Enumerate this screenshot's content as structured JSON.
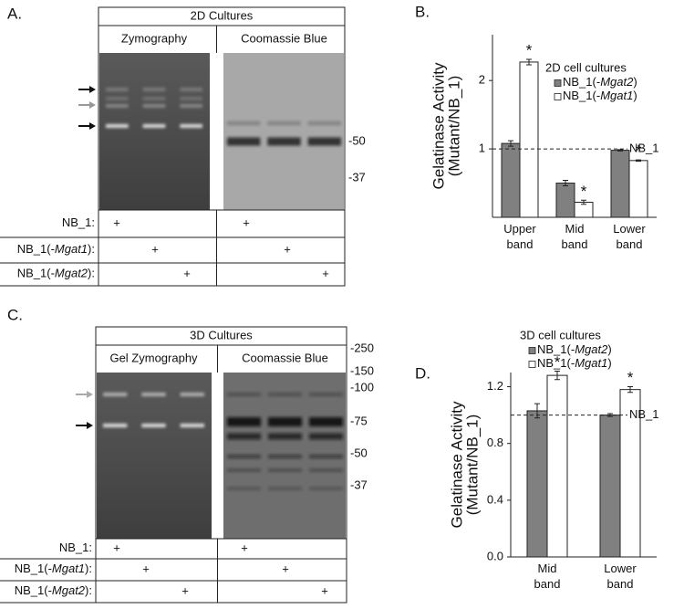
{
  "gel_a": {
    "label": "A.",
    "header": "2D Cultures",
    "columns": [
      "Zymography",
      "Coomassie Blue"
    ],
    "markers": [
      "-50",
      "-37"
    ],
    "rows": [
      {
        "parts": [
          "NB_1:"
        ],
        "marks": [
          "+",
          "+"
        ]
      },
      {
        "parts": [
          "NB_1(-",
          "Mgat1",
          "):"
        ],
        "marks": [
          "+",
          "+"
        ]
      },
      {
        "parts": [
          "NB_1(-",
          "Mgat2",
          "):"
        ],
        "marks": [
          "+",
          "+"
        ]
      }
    ]
  },
  "gel_c": {
    "label": "C.",
    "header": "3D Cultures",
    "columns": [
      "Gel Zymography",
      "Coomassie Blue"
    ],
    "markers": [
      "-250",
      "-150",
      "-100",
      "-75",
      "-50",
      "-37"
    ],
    "rows": [
      {
        "parts": [
          "NB_1:"
        ],
        "marks": [
          "+",
          "+"
        ]
      },
      {
        "parts": [
          "NB_1(-",
          "Mgat1",
          "):"
        ],
        "marks": [
          "+",
          "+"
        ]
      },
      {
        "parts": [
          "NB_1(-",
          "Mgat2",
          "):"
        ],
        "marks": [
          "+",
          "+"
        ]
      }
    ]
  },
  "chart_data": [
    {
      "type": "bar",
      "label": "B.",
      "legend_title": "2D cell cultures",
      "y_label": [
        "Gelatinase Activity",
        "(Mutant/NB_1)"
      ],
      "categories": [
        "Upper band",
        "Mid band",
        "Lower band"
      ],
      "series": [
        {
          "name": "NB_1(-Mgat2)",
          "color": "#808080",
          "values": [
            1.08,
            0.5,
            0.98
          ],
          "errors": [
            0.04,
            0.04,
            0.01
          ]
        },
        {
          "name": "NB_1(-Mgat1)",
          "color": "#ffffff",
          "values": [
            2.27,
            0.22,
            0.83
          ],
          "errors": [
            0.04,
            0.03,
            0.01
          ],
          "significance": [
            "*",
            "*",
            "*"
          ]
        }
      ],
      "reference": {
        "value": 1,
        "label": "NB_1"
      },
      "ylim": [
        0,
        2.67
      ],
      "yticks": [
        1,
        2
      ]
    },
    {
      "type": "bar",
      "label": "D.",
      "legend_title": "3D cell cultures",
      "y_label": [
        "Gelatinase Activity",
        "(Mutant/NB_1)"
      ],
      "categories": [
        "Mid band",
        "Lower band"
      ],
      "series": [
        {
          "name": "NB_1(-Mgat2)",
          "color": "#808080",
          "values": [
            1.03,
            1.0
          ],
          "errors": [
            0.05,
            0.01
          ]
        },
        {
          "name": "NB_1(-Mgat1)",
          "color": "#ffffff",
          "values": [
            1.28,
            1.18
          ],
          "errors": [
            0.03,
            0.02
          ],
          "significance": [
            "*",
            "*"
          ]
        }
      ],
      "reference": {
        "value": 1,
        "label": "NB_1"
      },
      "ylim": [
        0,
        1.3
      ],
      "yticks": [
        {
          "value": 0,
          "label": "0.0"
        },
        0.4,
        0.8,
        1.2
      ]
    }
  ]
}
